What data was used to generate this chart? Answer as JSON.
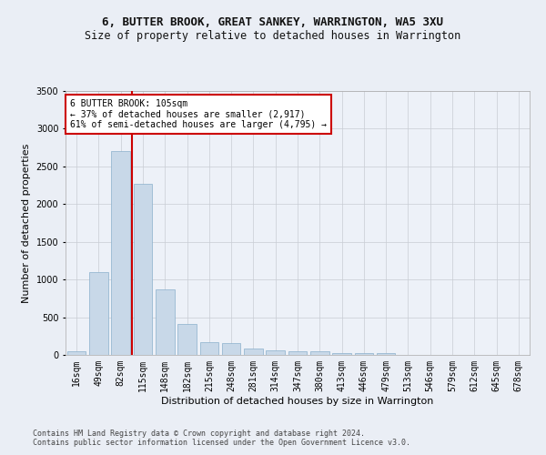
{
  "title": "6, BUTTER BROOK, GREAT SANKEY, WARRINGTON, WA5 3XU",
  "subtitle": "Size of property relative to detached houses in Warrington",
  "xlabel": "Distribution of detached houses by size in Warrington",
  "ylabel": "Number of detached properties",
  "categories": [
    "16sqm",
    "49sqm",
    "82sqm",
    "115sqm",
    "148sqm",
    "182sqm",
    "215sqm",
    "248sqm",
    "281sqm",
    "314sqm",
    "347sqm",
    "380sqm",
    "413sqm",
    "446sqm",
    "479sqm",
    "513sqm",
    "546sqm",
    "579sqm",
    "612sqm",
    "645sqm",
    "678sqm"
  ],
  "values": [
    50,
    1100,
    2700,
    2270,
    870,
    410,
    170,
    160,
    90,
    65,
    50,
    50,
    30,
    25,
    20,
    0,
    0,
    0,
    0,
    0,
    0
  ],
  "bar_color": "#c8d8e8",
  "bar_edge_color": "#8ab0cc",
  "vline_color": "#cc0000",
  "annotation_text": "6 BUTTER BROOK: 105sqm\n← 37% of detached houses are smaller (2,917)\n61% of semi-detached houses are larger (4,795) →",
  "annotation_box_color": "#ffffff",
  "annotation_box_edge": "#cc0000",
  "ylim": [
    0,
    3500
  ],
  "yticks": [
    0,
    500,
    1000,
    1500,
    2000,
    2500,
    3000,
    3500
  ],
  "footer_line1": "Contains HM Land Registry data © Crown copyright and database right 2024.",
  "footer_line2": "Contains public sector information licensed under the Open Government Licence v3.0.",
  "bg_color": "#eaeef5",
  "plot_bg_color": "#edf1f8",
  "title_fontsize": 9,
  "subtitle_fontsize": 8.5,
  "ylabel_fontsize": 8,
  "xlabel_fontsize": 8,
  "tick_fontsize": 7,
  "annotation_fontsize": 7,
  "footer_fontsize": 6
}
